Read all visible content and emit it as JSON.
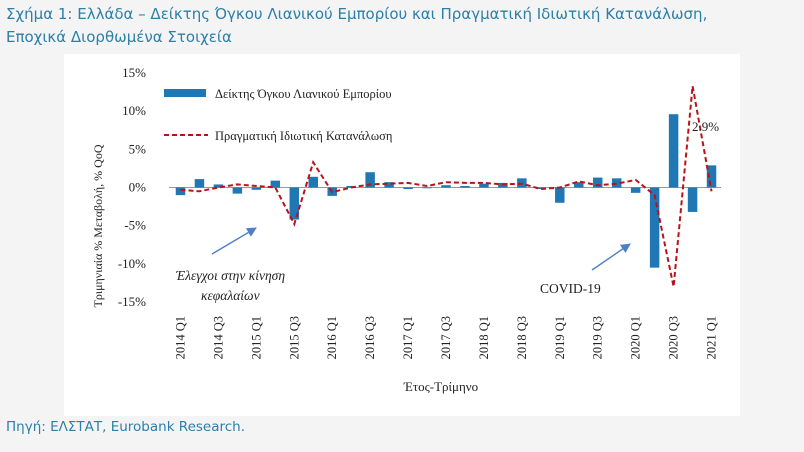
{
  "figure": {
    "title_line1": "Σχήμα 1: Ελλάδα – Δείκτης Όγκου Λιανικού Εμπορίου και Πραγματική Ιδιωτική Κατανάλωση,",
    "title_line2": "Εποχικά Διορθωμένα Στοιχεία",
    "source": "Πηγή: ΕΛΣΤΑΤ, Eurobank Research."
  },
  "colors": {
    "bar": "#1f77b4",
    "line": "#b8131a",
    "title": "#2b7fa8",
    "annotation_arrow": "#4f7fc4"
  },
  "chart_data": {
    "type": "bar",
    "xlabel": "Έτος-Τρίμηνο",
    "ylabel": "Τριμηνιαία % Μεταβολή, % QoQ",
    "ylim": [
      -15,
      15
    ],
    "yticks": [
      "15%",
      "10%",
      "5%",
      "0%",
      "-5%",
      "-10%",
      "-15%"
    ],
    "ytick_values": [
      15,
      10,
      5,
      0,
      -5,
      -10,
      -15
    ],
    "legend_position": "top-left",
    "categories": [
      "2014 Q1",
      "2014 Q2",
      "2014 Q3",
      "2014 Q4",
      "2015 Q1",
      "2015 Q2",
      "2015 Q3",
      "2015 Q4",
      "2016 Q1",
      "2016 Q2",
      "2016 Q3",
      "2016 Q4",
      "2017 Q1",
      "2017 Q2",
      "2017 Q3",
      "2017 Q4",
      "2018 Q1",
      "2018 Q2",
      "2018 Q3",
      "2018 Q4",
      "2019 Q1",
      "2019 Q2",
      "2019 Q3",
      "2019 Q4",
      "2020 Q1",
      "2020 Q2",
      "2020 Q3",
      "2020 Q4",
      "2021 Q1"
    ],
    "tick_labels": [
      "2014 Q1",
      "2014 Q3",
      "2015 Q1",
      "2015 Q3",
      "2016 Q1",
      "2016 Q3",
      "2017 Q1",
      "2017 Q3",
      "2018 Q1",
      "2018 Q3",
      "2019 Q1",
      "2019 Q3",
      "2020 Q1",
      "2020 Q3",
      "2021 Q1"
    ],
    "series": [
      {
        "name": "Δείκτης Όγκου Λιανικού Εμπορίου",
        "kind": "bar",
        "values": [
          -1.0,
          1.1,
          0.4,
          -0.8,
          -0.3,
          0.9,
          -4.2,
          1.4,
          -1.1,
          0.2,
          2.0,
          0.7,
          -0.2,
          -0.1,
          0.3,
          0.2,
          0.5,
          0.6,
          1.2,
          -0.2,
          -2.0,
          0.7,
          1.3,
          1.2,
          -0.7,
          -10.5,
          9.6,
          -3.2,
          2.9
        ]
      },
      {
        "name": "Πραγματική Ιδιωτική Κατανάλωση",
        "kind": "line",
        "style": "dashed",
        "values": [
          -0.3,
          -0.5,
          0.0,
          0.4,
          0.2,
          0.0,
          -4.8,
          3.3,
          -0.6,
          0.0,
          0.4,
          0.5,
          0.6,
          0.2,
          0.7,
          0.6,
          0.6,
          0.4,
          0.5,
          -0.2,
          0.0,
          0.8,
          0.3,
          0.5,
          1.0,
          -1.0,
          -13.0,
          13.3,
          -0.5
        ]
      }
    ],
    "annotations": [
      {
        "text": "2.9%",
        "anchor": "2021 Q1 bar"
      },
      {
        "text_line1": "Έλεγχοι στην κίνηση",
        "text_line2": "κεφαλαίων",
        "anchor": "2015 Q3"
      },
      {
        "text": "COVID-19",
        "anchor": "2020 Q2"
      }
    ]
  }
}
